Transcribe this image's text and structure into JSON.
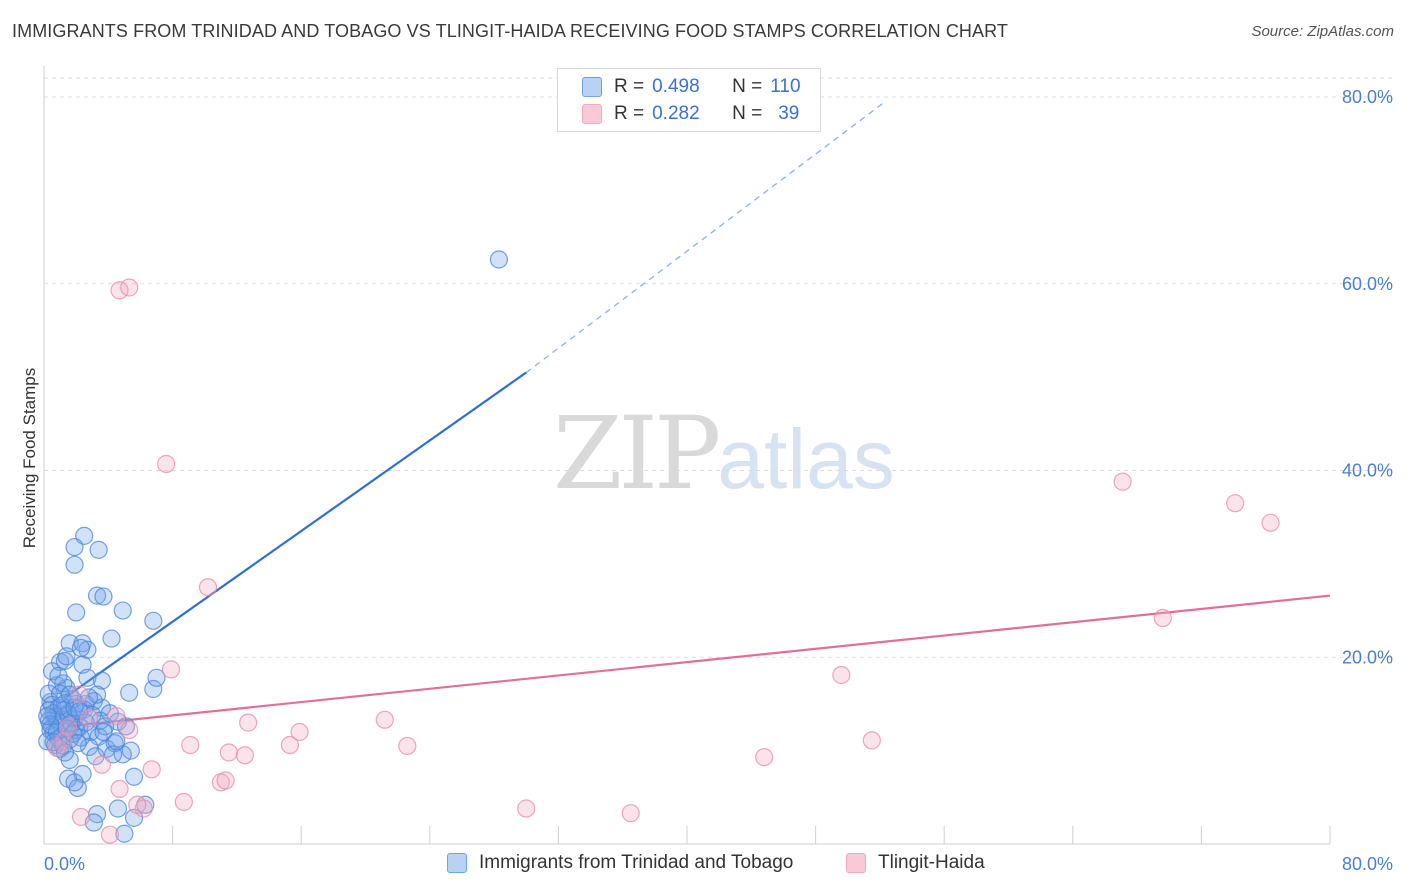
{
  "title": "IMMIGRANTS FROM TRINIDAD AND TOBAGO VS TLINGIT-HAIDA RECEIVING FOOD STAMPS CORRELATION CHART",
  "source": "Source: ZipAtlas.com",
  "watermark": {
    "zip": "ZIP",
    "atlas": "atlas"
  },
  "legend": {
    "r_label": "R =",
    "n_label": "N =",
    "series": [
      {
        "r": "0.498",
        "n": "110"
      },
      {
        "r": "0.282",
        "n": "39"
      }
    ]
  },
  "chart_data": {
    "type": "scatter",
    "xlabel": "",
    "ylabel": "Receiving Food Stamps",
    "xlim": [
      0,
      80
    ],
    "ylim": [
      0,
      80
    ],
    "x_tick_labels": [
      "0.0%",
      "80.0%"
    ],
    "y_ticks": [
      20,
      40,
      60,
      80
    ],
    "y_tick_labels": [
      "20.0%",
      "40.0%",
      "60.0%",
      "80.0%"
    ],
    "grid": "horizontal dashed",
    "legend_position": "top-center",
    "series": [
      {
        "name": "Immigrants from Trinidad and Tobago",
        "color": "#6fa3e8",
        "stroke": "#4a86d8",
        "trend": {
          "x0": 1.4,
          "y0": 15.8,
          "x1": 30.0,
          "y1": 50.5,
          "dash_to_x": 52.4,
          "dash_to_y": 79.6
        },
        "points": [
          [
            2.5,
            33.0
          ],
          [
            3.4,
            31.5
          ],
          [
            1.9,
            31.8
          ],
          [
            1.9,
            29.9
          ],
          [
            3.3,
            26.6
          ],
          [
            2.0,
            24.8
          ],
          [
            4.9,
            25.0
          ],
          [
            3.7,
            26.5
          ],
          [
            4.2,
            22.0
          ],
          [
            1.6,
            21.5
          ],
          [
            2.4,
            21.5
          ],
          [
            1.0,
            19.5
          ],
          [
            1.3,
            19.6
          ],
          [
            0.5,
            18.5
          ],
          [
            2.4,
            19.2
          ],
          [
            2.7,
            20.8
          ],
          [
            1.4,
            20.1
          ],
          [
            2.3,
            21.0
          ],
          [
            6.8,
            23.9
          ],
          [
            3.6,
            17.5
          ],
          [
            0.8,
            17.0
          ],
          [
            1.4,
            16.7
          ],
          [
            1.8,
            15.5
          ],
          [
            0.4,
            15.2
          ],
          [
            0.3,
            16.1
          ],
          [
            0.5,
            14.9
          ],
          [
            0.9,
            14.6
          ],
          [
            1.2,
            14.3
          ],
          [
            1.5,
            14.0
          ],
          [
            0.7,
            13.6
          ],
          [
            0.3,
            13.2
          ],
          [
            1.0,
            12.9
          ],
          [
            0.5,
            12.5
          ],
          [
            0.4,
            12.2
          ],
          [
            0.6,
            11.9
          ],
          [
            1.1,
            11.5
          ],
          [
            1.7,
            12.8
          ],
          [
            0.2,
            11.0
          ],
          [
            0.7,
            10.6
          ],
          [
            1.0,
            10.2
          ],
          [
            1.9,
            13.4
          ],
          [
            2.2,
            12.5
          ],
          [
            2.9,
            12.0
          ],
          [
            3.4,
            11.5
          ],
          [
            2.8,
            10.4
          ],
          [
            3.9,
            10.2
          ],
          [
            4.4,
            10.8
          ],
          [
            4.9,
            9.6
          ],
          [
            5.4,
            10.0
          ],
          [
            3.2,
            9.4
          ],
          [
            1.6,
            9.0
          ],
          [
            2.4,
            7.5
          ],
          [
            5.6,
            7.2
          ],
          [
            1.5,
            7.0
          ],
          [
            2.1,
            6.0
          ],
          [
            1.9,
            6.6
          ],
          [
            3.3,
            3.2
          ],
          [
            3.1,
            2.3
          ],
          [
            4.6,
            3.8
          ],
          [
            5.6,
            2.8
          ],
          [
            5.0,
            1.1
          ],
          [
            6.3,
            4.2
          ],
          [
            2.6,
            15.0
          ],
          [
            3.1,
            15.3
          ],
          [
            3.6,
            14.6
          ],
          [
            4.1,
            14.0
          ],
          [
            4.6,
            13.1
          ],
          [
            5.1,
            12.6
          ],
          [
            5.3,
            16.2
          ],
          [
            6.8,
            16.6
          ],
          [
            7.0,
            17.8
          ],
          [
            1.2,
            17.2
          ],
          [
            0.9,
            18.0
          ],
          [
            2.7,
            17.8
          ],
          [
            3.3,
            16.0
          ],
          [
            2.0,
            15.0
          ],
          [
            1.3,
            15.1
          ],
          [
            0.8,
            13.3
          ],
          [
            0.6,
            14.0
          ],
          [
            1.5,
            13.8
          ],
          [
            1.7,
            13.0
          ],
          [
            2.0,
            12.2
          ],
          [
            2.3,
            11.4
          ],
          [
            0.3,
            14.3
          ],
          [
            0.9,
            11.3
          ],
          [
            1.2,
            10.5
          ],
          [
            1.6,
            11.2
          ],
          [
            3.8,
            12.6
          ],
          [
            4.3,
            9.6
          ],
          [
            2.5,
            14.4
          ],
          [
            3.0,
            13.8
          ],
          [
            3.5,
            13.2
          ],
          [
            1.1,
            14.8
          ],
          [
            1.9,
            14.6
          ],
          [
            2.8,
            15.7
          ],
          [
            3.7,
            12.0
          ],
          [
            4.5,
            11.0
          ],
          [
            0.4,
            12.8
          ],
          [
            0.8,
            12.0
          ],
          [
            1.4,
            12.4
          ],
          [
            1.8,
            11.8
          ],
          [
            2.1,
            10.8
          ],
          [
            0.6,
            10.9
          ],
          [
            1.3,
            9.8
          ],
          [
            28.3,
            62.6
          ],
          [
            2.2,
            14.2
          ],
          [
            2.6,
            13.0
          ],
          [
            1.0,
            16.1
          ],
          [
            0.2,
            13.7
          ],
          [
            1.6,
            16.0
          ]
        ]
      },
      {
        "name": "Tlingit-Haida",
        "color": "#f4a9c2",
        "stroke": "#e888a8",
        "trend": {
          "x0": 1.4,
          "y0": 12.6,
          "x1": 80.0,
          "y1": 26.6
        },
        "points": [
          [
            4.7,
            59.3
          ],
          [
            5.3,
            59.6
          ],
          [
            7.6,
            40.7
          ],
          [
            10.2,
            27.5
          ],
          [
            7.9,
            18.7
          ],
          [
            12.7,
            13.0
          ],
          [
            15.9,
            12.0
          ],
          [
            21.2,
            13.3
          ],
          [
            9.1,
            10.6
          ],
          [
            11.5,
            9.8
          ],
          [
            12.5,
            9.5
          ],
          [
            15.3,
            10.6
          ],
          [
            22.6,
            10.5
          ],
          [
            11.0,
            6.6
          ],
          [
            11.3,
            6.8
          ],
          [
            8.7,
            4.5
          ],
          [
            6.2,
            3.8
          ],
          [
            4.7,
            5.9
          ],
          [
            6.7,
            8.0
          ],
          [
            2.3,
            2.9
          ],
          [
            4.1,
            1.0
          ],
          [
            5.8,
            4.2
          ],
          [
            5.3,
            12.2
          ],
          [
            2.2,
            16.0
          ],
          [
            0.8,
            10.3
          ],
          [
            1.2,
            11.0
          ],
          [
            1.5,
            12.5
          ],
          [
            30.0,
            3.8
          ],
          [
            36.5,
            3.3
          ],
          [
            49.6,
            18.1
          ],
          [
            44.8,
            9.3
          ],
          [
            51.5,
            11.1
          ],
          [
            67.1,
            38.8
          ],
          [
            74.1,
            36.5
          ],
          [
            76.3,
            34.4
          ],
          [
            69.6,
            24.2
          ],
          [
            3.6,
            8.5
          ],
          [
            4.5,
            13.7
          ],
          [
            2.8,
            13.5
          ]
        ]
      }
    ]
  }
}
